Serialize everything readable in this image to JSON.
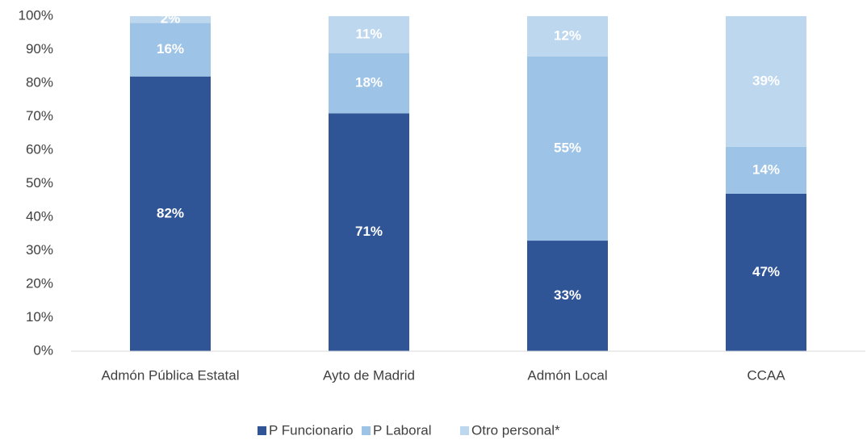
{
  "chart_data": {
    "type": "stacked_bar",
    "categories": [
      "Admón Pública Estatal",
      "Ayto de Madrid",
      "Admón Local",
      "CCAA"
    ],
    "series": [
      {
        "name": "P Funcionario",
        "color": "#2f5597",
        "values": [
          82,
          71,
          33,
          47
        ],
        "value_labels": [
          "82%",
          "71%",
          "33%",
          "47%"
        ]
      },
      {
        "name": "P Laboral",
        "color": "#9dc3e6",
        "values": [
          16,
          18,
          55,
          14
        ],
        "value_labels": [
          "16%",
          "18%",
          "55%",
          "14%"
        ]
      },
      {
        "name": "Otro personal*",
        "color": "#bdd7ee",
        "values": [
          2,
          11,
          12,
          39
        ],
        "value_labels": [
          "2%",
          "11%",
          "12%",
          "39%"
        ]
      }
    ],
    "ylim": [
      0,
      100
    ],
    "yticks": [
      {
        "value": 0,
        "label": "0%"
      },
      {
        "value": 10,
        "label": "10%"
      },
      {
        "value": 20,
        "label": "20%"
      },
      {
        "value": 30,
        "label": "30%"
      },
      {
        "value": 40,
        "label": "40%"
      },
      {
        "value": 50,
        "label": "50%"
      },
      {
        "value": 60,
        "label": "60%"
      },
      {
        "value": 70,
        "label": "70%"
      },
      {
        "value": 80,
        "label": "80%"
      },
      {
        "value": 90,
        "label": "90%"
      },
      {
        "value": 100,
        "label": "100%"
      }
    ],
    "grid": false,
    "legend": "bottom"
  }
}
